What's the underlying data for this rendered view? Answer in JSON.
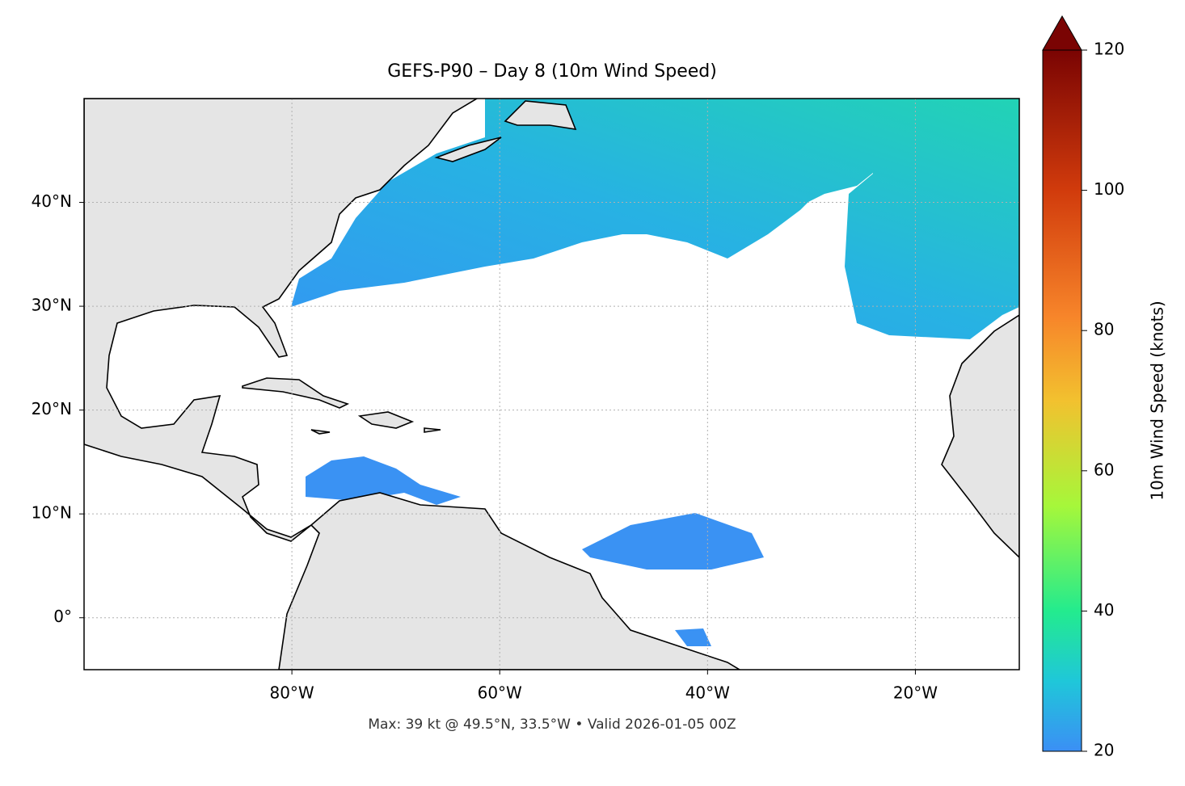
{
  "chart_data": {
    "type": "map",
    "title": "GEFS-P90 – Day 8 (10m Wind Speed)",
    "footer": "Max: 39 kt @ 49.5°N, 33.5°W • Valid 2026-01-05 00Z",
    "xlim": [
      -100,
      -10
    ],
    "ylim": [
      -5,
      50
    ],
    "xticks": [
      {
        "value": -80,
        "label": "80°W"
      },
      {
        "value": -60,
        "label": "60°W"
      },
      {
        "value": -40,
        "label": "40°W"
      },
      {
        "value": -20,
        "label": "20°W"
      }
    ],
    "yticks": [
      {
        "value": 0,
        "label": "0°"
      },
      {
        "value": 10,
        "label": "10°N"
      },
      {
        "value": 20,
        "label": "20°N"
      },
      {
        "value": 30,
        "label": "30°N"
      },
      {
        "value": 40,
        "label": "40°N"
      }
    ],
    "grid": true,
    "colorbar": {
      "label": "10m Wind Speed (knots)",
      "lim": [
        20,
        120
      ],
      "ticks": [
        20,
        40,
        60,
        80,
        100,
        120
      ]
    }
  }
}
